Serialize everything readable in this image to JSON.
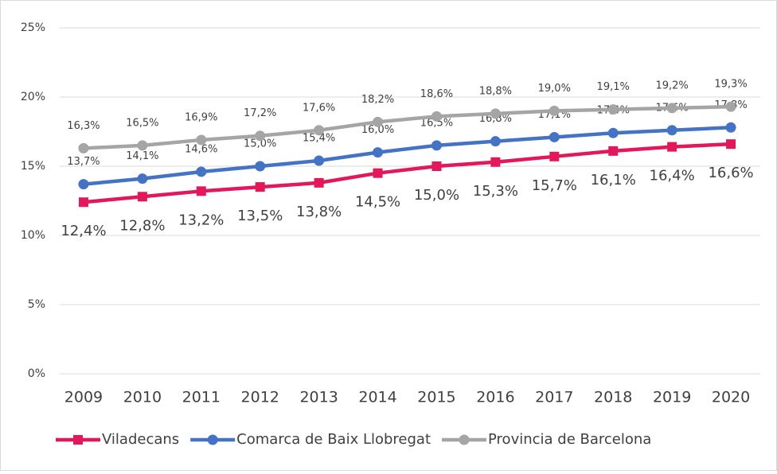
{
  "chart_data": {
    "type": "line",
    "categories": [
      "2009",
      "2010",
      "2011",
      "2012",
      "2013",
      "2014",
      "2015",
      "2016",
      "2017",
      "2018",
      "2019",
      "2020"
    ],
    "series": [
      {
        "name": "Viladecans",
        "color": "#e2185a",
        "marker": "square",
        "values": [
          12.4,
          12.8,
          13.2,
          13.5,
          13.8,
          14.5,
          15.0,
          15.3,
          15.7,
          16.1,
          16.4,
          16.6
        ],
        "value_labels": [
          "12,4%",
          "12,8%",
          "13,2%",
          "13,5%",
          "13,8%",
          "14,5%",
          "15,0%",
          "15,3%",
          "15,7%",
          "16,1%",
          "16,4%",
          "16,6%"
        ]
      },
      {
        "name": "Comarca de Baix Llobregat",
        "color": "#4472c4",
        "marker": "circle",
        "values": [
          13.7,
          14.1,
          14.6,
          15.0,
          15.4,
          16.0,
          16.5,
          16.8,
          17.1,
          17.4,
          17.6,
          17.8
        ],
        "value_labels": [
          "13,7%",
          "14,1%",
          "14,6%",
          "15,0%",
          "15,4%",
          "16,0%",
          "16,5%",
          "16,8%",
          "17,1%",
          "17,4%",
          "17,6%",
          "17,8%"
        ]
      },
      {
        "name": "Provincia de Barcelona",
        "color": "#a5a5a5",
        "marker": "circle",
        "values": [
          16.3,
          16.5,
          16.9,
          17.2,
          17.6,
          18.2,
          18.6,
          18.8,
          19.0,
          19.1,
          19.2,
          19.3
        ],
        "value_labels": [
          "16,3%",
          "16,5%",
          "16,9%",
          "17,2%",
          "17,6%",
          "18,2%",
          "18,6%",
          "18,8%",
          "19,0%",
          "19,1%",
          "19,2%",
          "19,3%"
        ]
      }
    ],
    "ylim": [
      0,
      25
    ],
    "yticks": [
      {
        "value": 0,
        "label": "0%"
      },
      {
        "value": 5,
        "label": "5%"
      },
      {
        "value": 10,
        "label": "10%"
      },
      {
        "value": 15,
        "label": "15%"
      },
      {
        "value": 20,
        "label": "20%"
      },
      {
        "value": 25,
        "label": "25%"
      }
    ],
    "grid": true,
    "legend": "bottom"
  }
}
